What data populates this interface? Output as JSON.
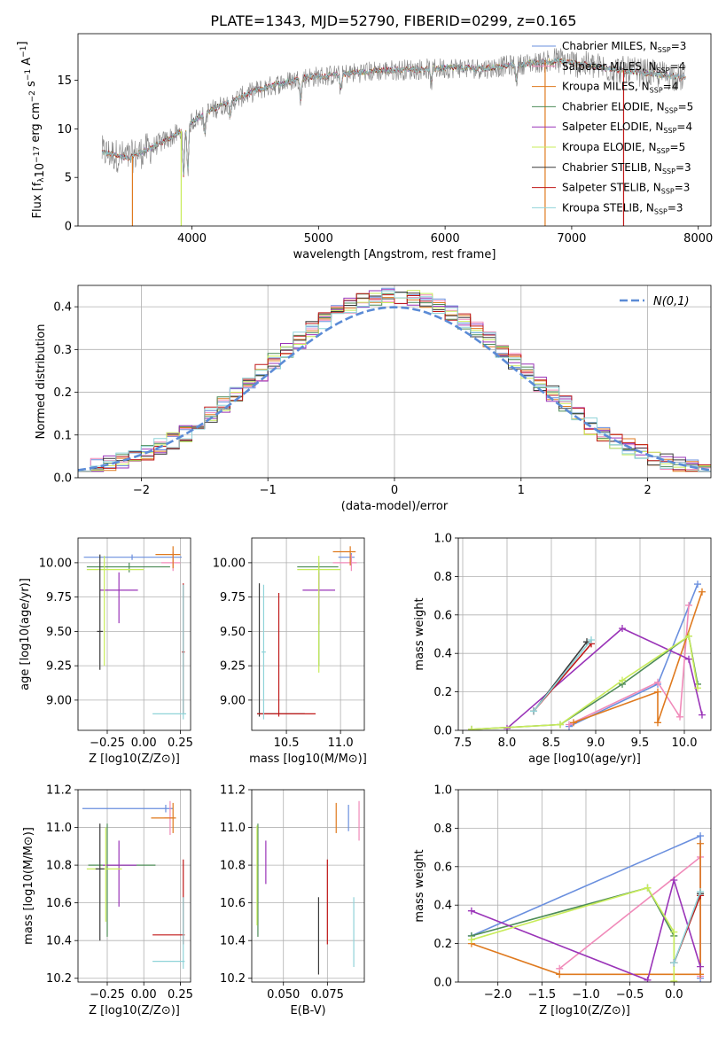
{
  "figure": {
    "title": "PLATE=1343, MJD=52790, FIBERID=0299, z=0.165"
  },
  "series_styles": [
    {
      "name": "Chabrier MILES, N_SSP=3",
      "color": "#6a8fde"
    },
    {
      "name": "Salpeter MILES, N_SSP=4",
      "color": "#f08ab9"
    },
    {
      "name": "Kroupa MILES, N_SSP=4",
      "color": "#df7a1f"
    },
    {
      "name": "Chabrier ELODIE, N_SSP=5",
      "color": "#4d8c57"
    },
    {
      "name": "Salpeter ELODIE, N_SSP=4",
      "color": "#9a34b8"
    },
    {
      "name": "Kroupa ELODIE, N_SSP=5",
      "color": "#c8ec5a"
    },
    {
      "name": "Chabrier STELIB, N_SSP=3",
      "color": "#3a3a3a"
    },
    {
      "name": "Salpeter STELIB, N_SSP=3",
      "color": "#c01818"
    },
    {
      "name": "Kroupa STELIB, N_SSP=3",
      "color": "#8fd3d8"
    }
  ],
  "chart_data": [
    {
      "id": "spectrum",
      "type": "line",
      "xlabel": "wavelength [Angstrom, rest frame]",
      "ylabel_parts": [
        "Flux [f",
        "λ",
        "10",
        "−17",
        " erg cm",
        "−2",
        " s",
        "−1",
        " A",
        "−1",
        "]"
      ],
      "xlim": [
        3100,
        8100
      ],
      "ylim": [
        0,
        19.8
      ],
      "xticks": [
        4000,
        5000,
        6000,
        7000,
        8000
      ],
      "yticks": [
        0,
        5,
        10,
        15
      ],
      "observed_color": "#808080",
      "legend": {
        "position": "right",
        "entries": [
          {
            "main": "Chabrier MILES, N",
            "sub": "SSP",
            "tail": "=3"
          },
          {
            "main": "Salpeter MILES, N",
            "sub": "SSP",
            "tail": "=4"
          },
          {
            "main": "Kroupa MILES, N",
            "sub": "SSP",
            "tail": "=4"
          },
          {
            "main": "Chabrier ELODIE, N",
            "sub": "SSP",
            "tail": "=5"
          },
          {
            "main": "Salpeter ELODIE, N",
            "sub": "SSP",
            "tail": "=4"
          },
          {
            "main": "Kroupa ELODIE, N",
            "sub": "SSP",
            "tail": "=5"
          },
          {
            "main": "Chabrier STELIB, N",
            "sub": "SSP",
            "tail": "=3"
          },
          {
            "main": "Salpeter STELIB, N",
            "sub": "SSP",
            "tail": "=3"
          },
          {
            "main": "Kroupa STELIB, N",
            "sub": "SSP",
            "tail": "=3"
          }
        ]
      },
      "continuum_x": [
        3290,
        3500,
        3700,
        3900,
        4000,
        4100,
        4300,
        4500,
        4700,
        4900,
        5100,
        5300,
        5500,
        5700,
        5900,
        6100,
        6300,
        6500,
        6700,
        6900,
        7100,
        7300,
        7500,
        7700,
        7900
      ],
      "continuum_y": [
        7.6,
        7.0,
        8.2,
        9.6,
        10.8,
        11.6,
        12.8,
        13.9,
        14.7,
        15.3,
        15.5,
        15.8,
        16.0,
        16.1,
        16.2,
        16.3,
        16.2,
        16.5,
        16.8,
        17.0,
        16.6,
        16.2,
        15.9,
        15.6,
        15.2
      ],
      "model_dropouts": [
        {
          "series": 2,
          "x": 3530
        },
        {
          "series": 5,
          "x": 3915
        },
        {
          "series": 2,
          "x": 6790
        },
        {
          "series": 7,
          "x": 7410
        }
      ]
    },
    {
      "id": "residuals",
      "type": "histogram",
      "xlabel": "(data-model)/error",
      "ylabel": "Normed distribution",
      "xlim": [
        -2.5,
        2.5
      ],
      "ylim": [
        0,
        0.45
      ],
      "xticks": [
        -2,
        -1,
        0,
        1,
        2
      ],
      "yticks": [
        0.0,
        0.1,
        0.2,
        0.3,
        0.4
      ],
      "grid": true,
      "bin_width": 0.1,
      "reference_curve": {
        "label": "N(0,1)",
        "color": "#5b8bd6",
        "mean": 0,
        "sigma": 1
      },
      "legend_position": "top-right"
    },
    {
      "id": "age-vs-Z",
      "type": "errorbar",
      "xlabel": "Z [log10(Z/Z⊙)]",
      "ylabel": "age  [log10(age/yr)]",
      "xlim": [
        -0.45,
        0.32
      ],
      "ylim": [
        8.78,
        10.18
      ],
      "xticks": [
        -0.25,
        0.0,
        0.25
      ],
      "yticks": [
        9.0,
        9.25,
        9.5,
        9.75,
        10.0
      ],
      "grid": true,
      "points": [
        {
          "s": 0,
          "x": -0.08,
          "y": 10.04,
          "xlo": -0.41,
          "xhi": 0.26,
          "ylo": 10.02,
          "yhi": 10.06
        },
        {
          "s": 1,
          "x": 0.2,
          "y": 10.0,
          "xlo": 0.12,
          "xhi": 0.25,
          "ylo": 9.94,
          "yhi": 10.08
        },
        {
          "s": 2,
          "x": 0.2,
          "y": 10.06,
          "xlo": 0.08,
          "xhi": 0.25,
          "ylo": 9.96,
          "yhi": 10.12
        },
        {
          "s": 3,
          "x": -0.1,
          "y": 9.97,
          "xlo": -0.39,
          "xhi": 0.18,
          "ylo": 9.93,
          "yhi": 10.0
        },
        {
          "s": 4,
          "x": -0.17,
          "y": 9.8,
          "xlo": -0.3,
          "xhi": -0.04,
          "ylo": 9.56,
          "yhi": 9.93
        },
        {
          "s": 5,
          "x": -0.27,
          "y": 9.95,
          "xlo": -0.39,
          "xhi": 0.0,
          "ylo": 9.25,
          "yhi": 10.05
        },
        {
          "s": 6,
          "x": -0.3,
          "y": 9.5,
          "xlo": -0.32,
          "xhi": -0.28,
          "ylo": 9.22,
          "yhi": 10.06
        },
        {
          "s": 7,
          "x": 0.27,
          "y": 9.35,
          "xlo": 0.26,
          "xhi": 0.28,
          "ylo": 8.9,
          "yhi": 9.85
        },
        {
          "s": 8,
          "x": 0.27,
          "y": 8.9,
          "xlo": 0.06,
          "xhi": 0.29,
          "ylo": 8.86,
          "yhi": 9.84
        }
      ]
    },
    {
      "id": "age-vs-mass",
      "type": "errorbar",
      "xlabel": "mass [log10(M/M⊙)]",
      "ylabel": "",
      "xlim": [
        10.18,
        11.22
      ],
      "ylim": [
        8.78,
        10.18
      ],
      "xticks": [
        10.5,
        11.0
      ],
      "yticks": [
        9.0,
        9.25,
        9.5,
        9.75,
        10.0
      ],
      "grid": true,
      "points": [
        {
          "s": 0,
          "x": 11.1,
          "y": 10.04,
          "xlo": 10.98,
          "xhi": 11.13,
          "ylo": 9.98,
          "yhi": 10.07
        },
        {
          "s": 1,
          "x": 11.1,
          "y": 10.0,
          "xlo": 10.93,
          "xhi": 11.15,
          "ylo": 9.94,
          "yhi": 10.06
        },
        {
          "s": 2,
          "x": 11.09,
          "y": 10.08,
          "xlo": 10.93,
          "xhi": 11.14,
          "ylo": 9.98,
          "yhi": 10.12
        },
        {
          "s": 3,
          "x": 10.8,
          "y": 9.97,
          "xlo": 10.6,
          "xhi": 10.98,
          "ylo": 9.25,
          "yhi": 10.0
        },
        {
          "s": 4,
          "x": 10.8,
          "y": 9.8,
          "xlo": 10.65,
          "xhi": 10.95,
          "ylo": 9.55,
          "yhi": 9.93
        },
        {
          "s": 5,
          "x": 10.8,
          "y": 9.95,
          "xlo": 10.6,
          "xhi": 11.0,
          "ylo": 9.2,
          "yhi": 10.05
        },
        {
          "s": 6,
          "x": 10.25,
          "y": 8.9,
          "xlo": 10.23,
          "xhi": 10.67,
          "ylo": 8.88,
          "yhi": 9.85
        },
        {
          "s": 7,
          "x": 10.43,
          "y": 8.9,
          "xlo": 10.23,
          "xhi": 10.77,
          "ylo": 8.88,
          "yhi": 9.78
        },
        {
          "s": 8,
          "x": 10.29,
          "y": 9.35,
          "xlo": 10.27,
          "xhi": 10.31,
          "ylo": 8.86,
          "yhi": 9.84
        }
      ]
    },
    {
      "id": "mass-weight-vs-age",
      "type": "line",
      "xlabel": "age  [log10(age/yr)]",
      "ylabel": "mass weight",
      "xlim": [
        7.45,
        10.3
      ],
      "ylim": [
        0,
        1
      ],
      "xticks": [
        7.5,
        8.0,
        8.5,
        9.0,
        9.5,
        10.0
      ],
      "yticks": [
        0.0,
        0.2,
        0.4,
        0.6,
        0.8,
        1.0
      ],
      "grid": true,
      "series": [
        {
          "s": 0,
          "x": [
            8.7,
            9.7,
            10.15
          ],
          "y": [
            0.02,
            0.24,
            0.76
          ]
        },
        {
          "s": 1,
          "x": [
            8.7,
            9.7,
            9.95,
            10.05
          ],
          "y": [
            0.03,
            0.25,
            0.07,
            0.65
          ]
        },
        {
          "s": 2,
          "x": [
            8.75,
            9.7,
            9.7,
            10.2
          ],
          "y": [
            0.04,
            0.2,
            0.04,
            0.72
          ]
        },
        {
          "s": 3,
          "x": [
            7.6,
            8.6,
            9.3,
            10.05,
            10.15
          ],
          "y": [
            0.005,
            0.03,
            0.24,
            0.49,
            0.24
          ]
        },
        {
          "s": 4,
          "x": [
            8.0,
            9.3,
            10.05,
            10.2
          ],
          "y": [
            0.01,
            0.53,
            0.37,
            0.08
          ]
        },
        {
          "s": 5,
          "x": [
            7.6,
            8.6,
            9.3,
            10.05,
            10.15
          ],
          "y": [
            0.005,
            0.03,
            0.26,
            0.49,
            0.22
          ]
        },
        {
          "s": 6,
          "x": [
            8.3,
            8.9
          ],
          "y": [
            0.1,
            0.46
          ]
        },
        {
          "s": 7,
          "x": [
            8.3,
            8.95
          ],
          "y": [
            0.1,
            0.45
          ]
        },
        {
          "s": 8,
          "x": [
            8.3,
            8.95
          ],
          "y": [
            0.1,
            0.47
          ]
        }
      ]
    },
    {
      "id": "mass-vs-Z",
      "type": "errorbar",
      "xlabel": "Z [log10(Z/Z⊙)]",
      "ylabel": "mass [log10(M/M⊙)]",
      "xlim": [
        -0.45,
        0.32
      ],
      "ylim": [
        10.18,
        11.2
      ],
      "xticks": [
        -0.25,
        0.0,
        0.25
      ],
      "yticks": [
        10.2,
        10.4,
        10.6,
        10.8,
        11.0,
        11.2
      ],
      "grid": true,
      "points": [
        {
          "s": 0,
          "x": 0.15,
          "y": 11.1,
          "xlo": -0.42,
          "xhi": 0.2,
          "ylo": 11.08,
          "yhi": 11.12
        },
        {
          "s": 1,
          "x": 0.18,
          "y": 11.05,
          "xlo": 0.14,
          "xhi": 0.2,
          "ylo": 10.96,
          "yhi": 11.14
        },
        {
          "s": 2,
          "x": 0.2,
          "y": 11.05,
          "xlo": 0.05,
          "xhi": 0.22,
          "ylo": 10.97,
          "yhi": 11.13
        },
        {
          "s": 3,
          "x": -0.25,
          "y": 10.8,
          "xlo": -0.38,
          "xhi": 0.08,
          "ylo": 10.42,
          "yhi": 11.02
        },
        {
          "s": 4,
          "x": -0.17,
          "y": 10.8,
          "xlo": -0.28,
          "xhi": -0.05,
          "ylo": 10.58,
          "yhi": 10.93
        },
        {
          "s": 5,
          "x": -0.26,
          "y": 10.78,
          "xlo": -0.39,
          "xhi": -0.15,
          "ylo": 10.5,
          "yhi": 11.0
        },
        {
          "s": 6,
          "x": -0.3,
          "y": 10.78,
          "xlo": -0.33,
          "xhi": -0.27,
          "ylo": 10.4,
          "yhi": 11.02
        },
        {
          "s": 7,
          "x": 0.27,
          "y": 10.43,
          "xlo": 0.06,
          "xhi": 0.28,
          "ylo": 10.38,
          "yhi": 10.83
        },
        {
          "s": 8,
          "x": 0.27,
          "y": 10.29,
          "xlo": 0.06,
          "xhi": 0.28,
          "ylo": 10.25,
          "yhi": 10.63
        }
      ]
    },
    {
      "id": "mass-vs-EBV",
      "type": "errorbar",
      "xlabel": "E(B-V)",
      "ylabel": "",
      "xlim": [
        0.032,
        0.096
      ],
      "ylim": [
        10.18,
        11.2
      ],
      "xticks": [
        0.05,
        0.075
      ],
      "yticks": [
        10.2,
        10.4,
        10.6,
        10.8,
        11.0,
        11.2
      ],
      "grid": true,
      "points": [
        {
          "s": 0,
          "x": 0.087,
          "y": 11.05,
          "xlo": 0.087,
          "xhi": 0.087,
          "ylo": 10.98,
          "yhi": 11.12
        },
        {
          "s": 1,
          "x": 0.093,
          "y": 11.05,
          "xlo": 0.093,
          "xhi": 0.093,
          "ylo": 10.93,
          "yhi": 11.14
        },
        {
          "s": 2,
          "x": 0.08,
          "y": 11.05,
          "xlo": 0.08,
          "xhi": 0.08,
          "ylo": 10.97,
          "yhi": 11.13
        },
        {
          "s": 3,
          "x": 0.0355,
          "y": 10.75,
          "xlo": 0.0355,
          "xhi": 0.0355,
          "ylo": 10.42,
          "yhi": 11.02
        },
        {
          "s": 4,
          "x": 0.04,
          "y": 10.8,
          "xlo": 0.04,
          "xhi": 0.04,
          "ylo": 10.7,
          "yhi": 10.93
        },
        {
          "s": 5,
          "x": 0.035,
          "y": 10.75,
          "xlo": 0.035,
          "xhi": 0.035,
          "ylo": 10.48,
          "yhi": 11.01
        },
        {
          "s": 6,
          "x": 0.07,
          "y": 10.4,
          "xlo": 0.07,
          "xhi": 0.07,
          "ylo": 10.22,
          "yhi": 10.63
        },
        {
          "s": 7,
          "x": 0.075,
          "y": 10.6,
          "xlo": 0.075,
          "xhi": 0.075,
          "ylo": 10.38,
          "yhi": 10.83
        },
        {
          "s": 8,
          "x": 0.09,
          "y": 10.45,
          "xlo": 0.09,
          "xhi": 0.09,
          "ylo": 10.26,
          "yhi": 10.63
        }
      ]
    },
    {
      "id": "mass-weight-vs-Z",
      "type": "line",
      "xlabel": "Z [log10(Z/Z⊙)]",
      "ylabel": "mass weight",
      "xlim": [
        -2.45,
        0.42
      ],
      "ylim": [
        0,
        1
      ],
      "xticks": [
        -2.0,
        -1.5,
        -1.0,
        -0.5,
        0.0
      ],
      "yticks": [
        0.0,
        0.2,
        0.4,
        0.6,
        0.8,
        1.0
      ],
      "grid": true,
      "series": [
        {
          "s": 0,
          "x": [
            -2.3,
            0.3,
            0.3
          ],
          "y": [
            0.24,
            0.76,
            0.02
          ]
        },
        {
          "s": 1,
          "x": [
            -1.3,
            0.3,
            0.3
          ],
          "y": [
            0.07,
            0.65,
            0.03
          ]
        },
        {
          "s": 2,
          "x": [
            -2.3,
            -1.3,
            0.3,
            0.3
          ],
          "y": [
            0.2,
            0.04,
            0.04,
            0.72
          ]
        },
        {
          "s": 3,
          "x": [
            -2.3,
            -0.3,
            0.0,
            0.0,
            0.3
          ],
          "y": [
            0.24,
            0.49,
            0.24,
            0.1,
            0.45
          ]
        },
        {
          "s": 4,
          "x": [
            -2.3,
            -0.3,
            0.0,
            0.3
          ],
          "y": [
            0.37,
            0.01,
            0.53,
            0.08
          ]
        },
        {
          "s": 5,
          "x": [
            -2.3,
            -0.3,
            0.0,
            0.0
          ],
          "y": [
            0.22,
            0.49,
            0.26,
            0.005
          ]
        },
        {
          "s": 6,
          "x": [
            0.0,
            0.3
          ],
          "y": [
            0.1,
            0.46
          ]
        },
        {
          "s": 7,
          "x": [
            0.0,
            0.3
          ],
          "y": [
            0.1,
            0.45
          ]
        },
        {
          "s": 8,
          "x": [
            0.0,
            0.3
          ],
          "y": [
            0.1,
            0.47
          ]
        }
      ]
    }
  ]
}
